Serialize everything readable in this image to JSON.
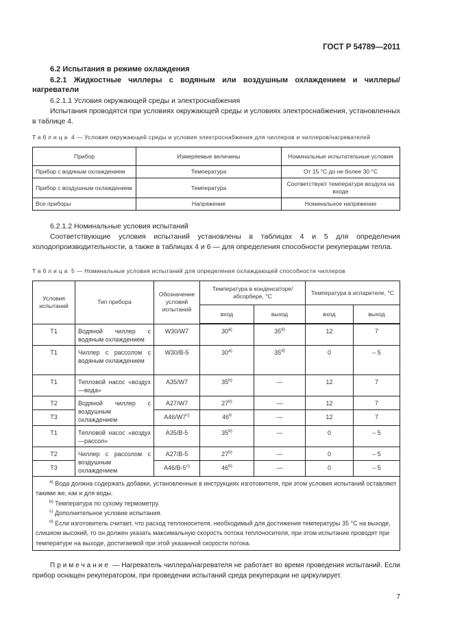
{
  "header": {
    "standard": "ГОСТ Р 54789—2011"
  },
  "section": {
    "title": "6.2 Испытания в режиме охлаждения",
    "sub1": "6.2.1 Жидкостные чиллеры с водяным или воздушным охлаждением и чиллеры/нагреватели",
    "sub11": "6.2.1.1 Условия окружающей среды и электроснабжения",
    "para1": "Испытания проводятся при условиях окружающей среды и условиях электроснабжения, установленных в таблице 4.",
    "sub12": "6.2.1.2 Номинальные условия испытаний",
    "para2": "Соответствующие условия испытаний установлены в таблицах 4 и 5 для определения холодопроизводительности, а также в таблицах 4 и 6 — для определения способности рекуперации тепла."
  },
  "table4": {
    "caption_word": "Таблица",
    "caption": "4 — Условия окружающей среды и условия электроснабжения для чиллеров и чиллеров/нагревателей",
    "headers": [
      "Прибор",
      "Измеряемые величины",
      "Номинальные испытательные условия"
    ],
    "rows": [
      [
        "Прибор с водяным охлаждением",
        "Температура",
        "От 15 °С до не более 30 °С"
      ],
      [
        "Прибор с воздушным охлаждением",
        "Температура",
        "Соответствуют температуре воздуха на входе"
      ],
      [
        "Все приборы",
        "Напряжение",
        "Номинальное напряжение"
      ]
    ]
  },
  "table5": {
    "caption_word": "Таблица",
    "caption": "5 — Номинальные условия испытаний для определения охлаждающей способности чиллеров",
    "headers": {
      "cond": "Условия испытаний",
      "type": "Тип прибора",
      "desig": "Обозначение условий испытаний",
      "cond_temp": "Температура в конденсаторе/абсорбере, °С",
      "evap_temp": "Температура в испарителе, °С",
      "in": "вход",
      "out": "выход"
    },
    "rows": [
      {
        "c": "Т1",
        "t": "Водяной чиллер с водяным охлаждением",
        "d": "W30/W7",
        "ci": "30",
        "cis": "a)",
        "co": "35",
        "cos": "d)",
        "ei": "12",
        "eo": "7"
      },
      {
        "c": "Т1",
        "t": "Чиллер с рассолом с водяным охлаждением",
        "d": "W30/B-5",
        "ci": "30",
        "cis": "a)",
        "co": "35",
        "cos": "d)",
        "ei": "0",
        "eo": "– 5"
      },
      {
        "c": "Т1",
        "t": "Тепловой насос «воздух—вода»",
        "d": "A35/W7",
        "ci": "35",
        "cis": "b)",
        "co": "—",
        "cos": "",
        "ei": "12",
        "eo": "7"
      },
      {
        "c": "Т2",
        "t": "Водяной чиллер с воздушным охлаждением",
        "span": 2,
        "d": "A27/W7",
        "ci": "27",
        "cis": "b)",
        "co": "—",
        "cos": "",
        "ei": "12",
        "eo": "7"
      },
      {
        "c": "Т3",
        "d": "A46/W7",
        "ds": "c)",
        "ci": "46",
        "cis": "b",
        "co": "—",
        "cos": "",
        "ei": "12",
        "eo": "7"
      },
      {
        "c": "Т1",
        "t": "Тепловой насос «воздух—рассол»",
        "d": "A35/B-5",
        "ci": "35",
        "cis": "b)",
        "co": "—",
        "cos": "",
        "ei": "0",
        "eo": "– 5"
      },
      {
        "c": "Т2",
        "t": "Чиллер с рассолом с воздушным охлаждением",
        "span": 2,
        "d": "A27/B-5",
        "ci": "27",
        "cis": "b)",
        "co": "—",
        "cos": "",
        "ei": "0",
        "eo": "– 5"
      },
      {
        "c": "Т3",
        "d": "A46/B-5",
        "ds": "c)",
        "ci": "46",
        "cis": "b)",
        "co": "—",
        "cos": "",
        "ei": "0",
        "eo": "– 5"
      }
    ],
    "notes": [
      {
        "m": "a)",
        "t": "Вода должна содержать добавки, установленные в инструкциях изготовителя, при этом условия испытаний оставляют такими же, как и для воды."
      },
      {
        "m": "b)",
        "t": "Температура по сухому термометру."
      },
      {
        "m": "c)",
        "t": "Дополнительное условие испытания."
      },
      {
        "m": "d)",
        "t": "Если изготовитель считает, что расход теплоносителя, необходимый для достижения температуры 35 °С на выходе, слишком высокий, то он должен указать максимальную скорость потока теплоносителя, при этом испытание проводят при температуре на выходе, достигаемой при этой указанной скорости потока."
      }
    ]
  },
  "note": {
    "word": "Примечание",
    "text": "— Нагреватель чиллера/нагревателя не работает во время проведения испытаний. Если прибор оснащен рекуператором, при проведении испытаний среда рекуперации не циркулирует."
  },
  "page_number": "7"
}
